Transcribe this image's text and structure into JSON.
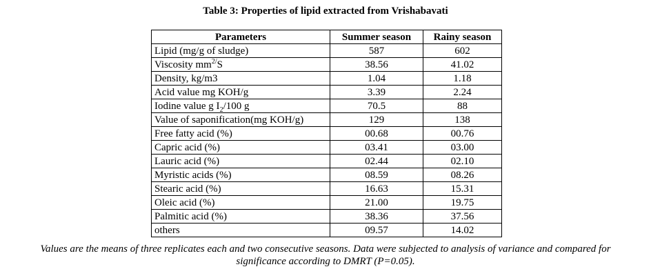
{
  "title": "Table 3: Properties of lipid extracted from Vrishabavati",
  "table": {
    "headers": [
      "Parameters",
      "Summer season",
      "Rainy season"
    ],
    "rows": [
      {
        "parameter": "Lipid (mg/g of sludge)",
        "summer": "587",
        "rainy": "602"
      },
      {
        "parameter_pre": "Viscosity mm",
        "parameter_sup": "2/",
        "parameter_post": "S",
        "summer": "38.56",
        "rainy": "41.02"
      },
      {
        "parameter": "Density, kg/m3",
        "summer": "1.04",
        "rainy": "1.18"
      },
      {
        "parameter": "Acid value mg KOH/g",
        "summer": "3.39",
        "rainy": "2.24"
      },
      {
        "parameter_pre": "Iodine value g I",
        "parameter_sub": "2",
        "parameter_post": "/100 g",
        "summer": "70.5",
        "rainy": "88"
      },
      {
        "parameter": "Value of saponification(mg KOH/g)",
        "summer": "129",
        "rainy": "138"
      },
      {
        "parameter": "Free fatty acid (%)",
        "summer": "00.68",
        "rainy": "00.76"
      },
      {
        "parameter": "Capric acid (%)",
        "summer": "03.41",
        "rainy": "03.00"
      },
      {
        "parameter": "Lauric acid (%)",
        "summer": "02.44",
        "rainy": "02.10"
      },
      {
        "parameter": "Myristic acids (%)",
        "summer": "08.59",
        "rainy": "08.26"
      },
      {
        "parameter": "Stearic acid (%)",
        "summer": "16.63",
        "rainy": "15.31"
      },
      {
        "parameter": "Oleic acid (%)",
        "summer": "21.00",
        "rainy": "19.75"
      },
      {
        "parameter": "Palmitic acid (%)",
        "summer": "38.36",
        "rainy": "37.56"
      },
      {
        "parameter": "others",
        "summer": "09.57",
        "rainy": "14.02"
      }
    ]
  },
  "footnote": {
    "line1": "Values are the means of three replicates each and two consecutive seasons. Data were subjected to analysis of variance and compared for",
    "line2": "significance according to DMRT (P=0.05)."
  }
}
